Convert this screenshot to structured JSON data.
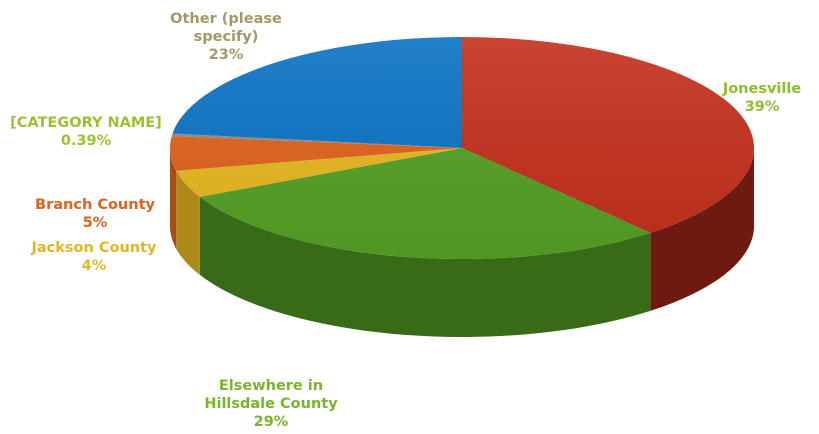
{
  "chart_data": {
    "type": "pie",
    "style": "3d",
    "title": "",
    "start_angle_deg": 0,
    "direction": "clockwise",
    "slices": [
      {
        "name": "Jonesville",
        "value": 39,
        "label_value": "39%",
        "color": "#c4301c",
        "label_color": "#8cbf2a"
      },
      {
        "name": "Elsewhere in Hillsdale County",
        "name_lines": [
          "Elsewhere in",
          "Hillsdale County"
        ],
        "value": 29,
        "label_value": "29%",
        "color": "#54a024",
        "label_color": "#7ab32e"
      },
      {
        "name": "Jackson County",
        "value": 4,
        "label_value": "4%",
        "color": "#e8b820",
        "label_color": "#e6b422"
      },
      {
        "name": "Branch County",
        "value": 5,
        "label_value": "5%",
        "color": "#e0621c",
        "label_color": "#e0621c"
      },
      {
        "name": "[CATEGORY NAME]",
        "value": 0.39,
        "label_value": "0.39%",
        "color": "#8c8c8c",
        "label_color": "#9bc22e"
      },
      {
        "name": "Other (please specify)",
        "name_lines": [
          "Other (please",
          "specify)"
        ],
        "value": 23,
        "label_value": "23%",
        "color": "#0a72c4",
        "label_color": "#a7966c"
      }
    ]
  }
}
